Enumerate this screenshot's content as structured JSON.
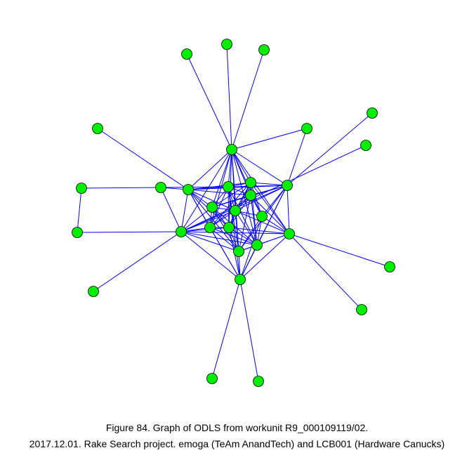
{
  "caption": {
    "line1": "Figure 84. Graph of ODLS from workunit R9_000109119/02.",
    "line2": "2017.12.01. Rake Search project. emoga (TeAm AnandTech) and LCB001 (Hardware Canucks)"
  },
  "colors": {
    "background": "#ffffff",
    "edge": "#0000ff",
    "node_fill": "#00ee00",
    "node_stroke": "#000000",
    "text": "#000000"
  },
  "graph": {
    "node_count": 32
  }
}
